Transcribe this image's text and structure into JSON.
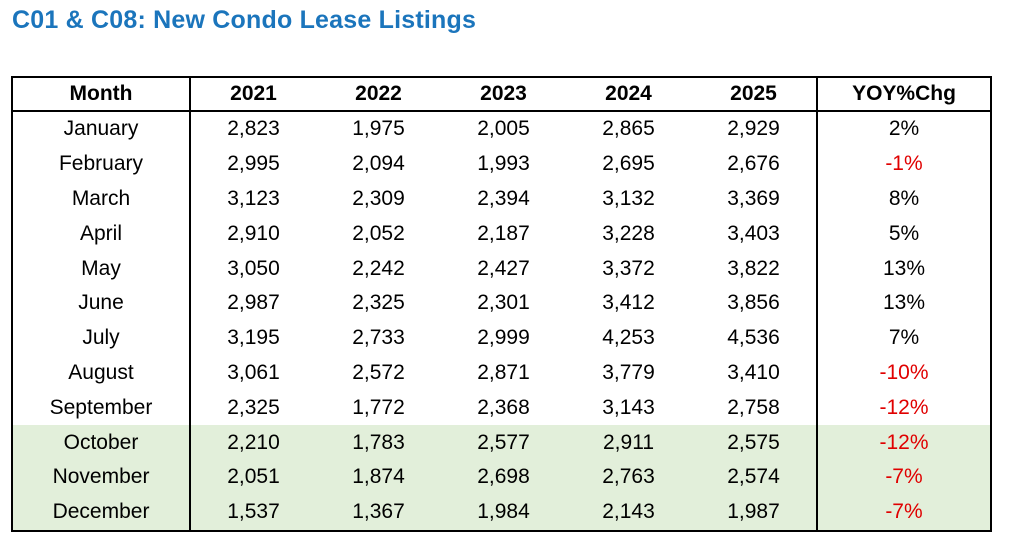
{
  "title": "C01 & C08: New Condo Lease Listings",
  "chart_data": {
    "type": "table",
    "title": "C01 & C08: New Condo Lease Listings",
    "columns": [
      "Month",
      "2021",
      "2022",
      "2023",
      "2024",
      "2025",
      "YOY%Chg"
    ],
    "rows": [
      {
        "month": "January",
        "values": [
          2823,
          1975,
          2005,
          2865,
          2929
        ],
        "display": [
          "2,823",
          "1,975",
          "2,005",
          "2,865",
          "2,929"
        ],
        "yoy": "2%",
        "yoy_negative": false,
        "highlighted": false
      },
      {
        "month": "February",
        "values": [
          2995,
          2094,
          1993,
          2695,
          2676
        ],
        "display": [
          "2,995",
          "2,094",
          "1,993",
          "2,695",
          "2,676"
        ],
        "yoy": "-1%",
        "yoy_negative": true,
        "highlighted": false
      },
      {
        "month": "March",
        "values": [
          3123,
          2309,
          2394,
          3132,
          3369
        ],
        "display": [
          "3,123",
          "2,309",
          "2,394",
          "3,132",
          "3,369"
        ],
        "yoy": "8%",
        "yoy_negative": false,
        "highlighted": false
      },
      {
        "month": "April",
        "values": [
          2910,
          2052,
          2187,
          3228,
          3403
        ],
        "display": [
          "2,910",
          "2,052",
          "2,187",
          "3,228",
          "3,403"
        ],
        "yoy": "5%",
        "yoy_negative": false,
        "highlighted": false
      },
      {
        "month": "May",
        "values": [
          3050,
          2242,
          2427,
          3372,
          3822
        ],
        "display": [
          "3,050",
          "2,242",
          "2,427",
          "3,372",
          "3,822"
        ],
        "yoy": "13%",
        "yoy_negative": false,
        "highlighted": false
      },
      {
        "month": "June",
        "values": [
          2987,
          2325,
          2301,
          3412,
          3856
        ],
        "display": [
          "2,987",
          "2,325",
          "2,301",
          "3,412",
          "3,856"
        ],
        "yoy": "13%",
        "yoy_negative": false,
        "highlighted": false
      },
      {
        "month": "July",
        "values": [
          3195,
          2733,
          2999,
          4253,
          4536
        ],
        "display": [
          "3,195",
          "2,733",
          "2,999",
          "4,253",
          "4,536"
        ],
        "yoy": "7%",
        "yoy_negative": false,
        "highlighted": false
      },
      {
        "month": "August",
        "values": [
          3061,
          2572,
          2871,
          3779,
          3410
        ],
        "display": [
          "3,061",
          "2,572",
          "2,871",
          "3,779",
          "3,410"
        ],
        "yoy": "-10%",
        "yoy_negative": true,
        "highlighted": false
      },
      {
        "month": "September",
        "values": [
          2325,
          1772,
          2368,
          3143,
          2758
        ],
        "display": [
          "2,325",
          "1,772",
          "2,368",
          "3,143",
          "2,758"
        ],
        "yoy": "-12%",
        "yoy_negative": true,
        "highlighted": false
      },
      {
        "month": "October",
        "values": [
          2210,
          1783,
          2577,
          2911,
          2575
        ],
        "display": [
          "2,210",
          "1,783",
          "2,577",
          "2,911",
          "2,575"
        ],
        "yoy": "-12%",
        "yoy_negative": true,
        "highlighted": true
      },
      {
        "month": "November",
        "values": [
          2051,
          1874,
          2698,
          2763,
          2574
        ],
        "display": [
          "2,051",
          "1,874",
          "2,698",
          "2,763",
          "2,574"
        ],
        "yoy": "-7%",
        "yoy_negative": true,
        "highlighted": true
      },
      {
        "month": "December",
        "values": [
          1537,
          1367,
          1984,
          2143,
          1987
        ],
        "display": [
          "1,537",
          "1,367",
          "1,984",
          "2,143",
          "1,987"
        ],
        "yoy": "-7%",
        "yoy_negative": true,
        "highlighted": true
      }
    ],
    "layout_hints": {
      "highlight_rows": [
        "October",
        "November",
        "December"
      ],
      "negative_values_colored": true,
      "grid": "outer-border, header separator, vertical lines around Month and YOY%Chg columns only"
    }
  },
  "colors": {
    "title_blue": "#1b75bc",
    "negative_red": "#e00000",
    "highlight_green": "#e2efda",
    "border_black": "#000000",
    "background": "#ffffff"
  }
}
